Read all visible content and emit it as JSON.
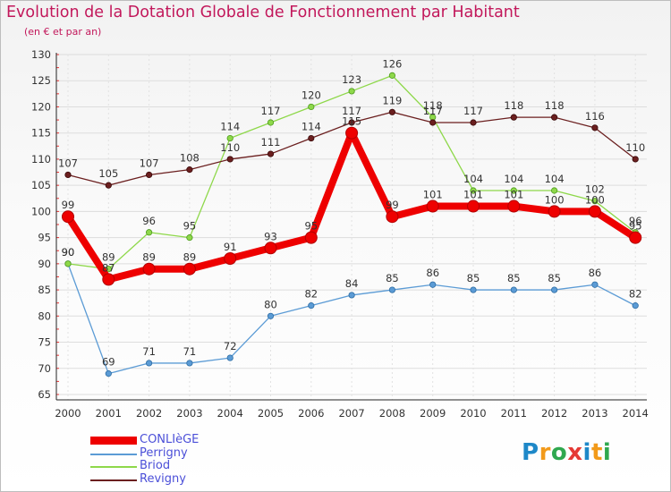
{
  "header": {
    "title": "Evolution de la Dotation Globale de Fonctionnement par Habitant",
    "subtitle": "(en € et par an)"
  },
  "chart_data": {
    "type": "line",
    "title": "Evolution de la Dotation Globale de Fonctionnement par Habitant",
    "subtitle": "(en € et par an)",
    "xlabel": "",
    "ylabel": "",
    "x": [
      "2000",
      "2001",
      "2002",
      "2003",
      "2004",
      "2005",
      "2006",
      "2007",
      "2008",
      "2009",
      "2010",
      "2011",
      "2012",
      "2013",
      "2014"
    ],
    "yticks": [
      65,
      70,
      75,
      80,
      85,
      90,
      95,
      100,
      105,
      110,
      115,
      120,
      125,
      130
    ],
    "ylim": [
      65,
      130
    ],
    "grid": true,
    "legend_position": "bottom-left",
    "series": [
      {
        "name": "CONLIèGE",
        "color": "#ee0000",
        "values": [
          99,
          87,
          89,
          89,
          91,
          93,
          95,
          115,
          99,
          101,
          101,
          101,
          100,
          100,
          95
        ]
      },
      {
        "name": "Perrigny",
        "color": "#5b9bd5",
        "values": [
          90,
          69,
          71,
          71,
          72,
          80,
          82,
          84,
          85,
          86,
          85,
          85,
          85,
          86,
          82
        ]
      },
      {
        "name": "Briod",
        "color": "#8ed84a",
        "values": [
          90,
          89,
          96,
          95,
          114,
          117,
          120,
          123,
          126,
          118,
          104,
          104,
          104,
          102,
          96
        ]
      },
      {
        "name": "Revigny",
        "color": "#6b1f1f",
        "values": [
          107,
          105,
          107,
          108,
          110,
          111,
          114,
          117,
          119,
          117,
          117,
          118,
          118,
          116,
          110
        ]
      }
    ]
  },
  "branding": {
    "logo_letters": [
      {
        "char": "P",
        "color": "#1e88c8"
      },
      {
        "char": "r",
        "color": "#f29a1a"
      },
      {
        "char": "o",
        "color": "#2fa84f"
      },
      {
        "char": "x",
        "color": "#e53935"
      },
      {
        "char": "i",
        "color": "#1e88c8"
      },
      {
        "char": "t",
        "color": "#f29a1a"
      },
      {
        "char": "i",
        "color": "#2fa84f"
      }
    ]
  },
  "colors": {
    "title": "#c2185b",
    "axis_text": "#333333",
    "grid": "#dddddd"
  }
}
